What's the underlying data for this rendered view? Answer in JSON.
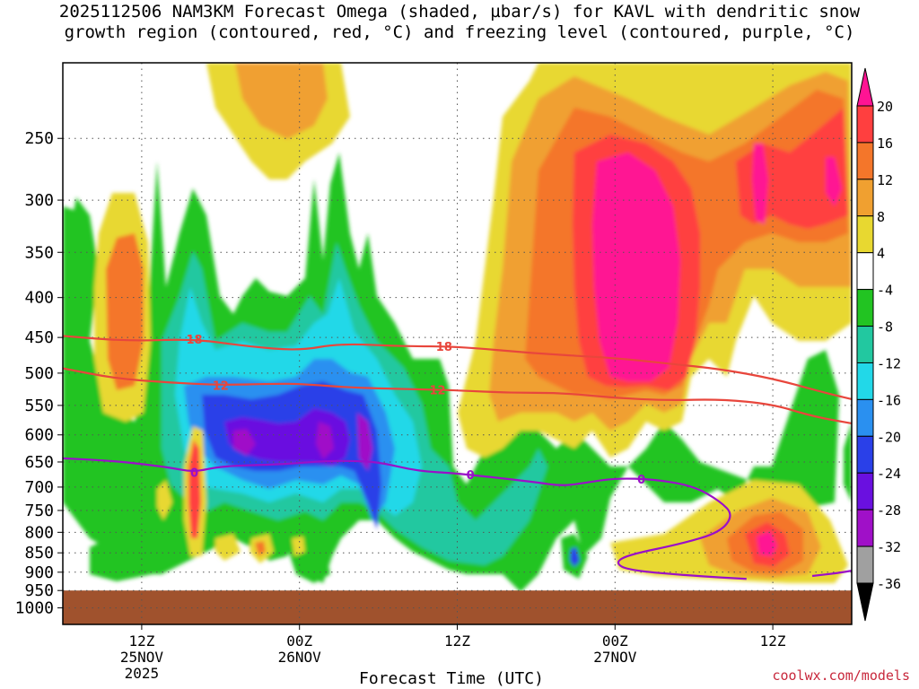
{
  "title_line1": "2025112506 NAM3KM Forecast Omega (shaded, µbar/s) for KAVL with dendritic snow",
  "title_line2": "growth region (contoured, red, °C) and freezing level (contoured, purple, °C)",
  "credit": "coolwx.com/models",
  "chart_data": {
    "type": "heatmap",
    "xlabel": "Forecast Time (UTC)",
    "ylabel": "",
    "x_range_hours": [
      0,
      60
    ],
    "y_range_hpa": [
      1050,
      200
    ],
    "y_ticks": [
      250,
      300,
      350,
      400,
      450,
      500,
      550,
      600,
      650,
      700,
      750,
      800,
      850,
      900,
      950,
      1000
    ],
    "x_ticks": [
      {
        "hour": 6,
        "lines": [
          "12Z",
          "25NOV",
          "2025"
        ]
      },
      {
        "hour": 18,
        "lines": [
          "00Z",
          "26NOV"
        ]
      },
      {
        "hour": 30,
        "lines": [
          "12Z"
        ]
      },
      {
        "hour": 42,
        "lines": [
          "00Z",
          "27NOV"
        ]
      },
      {
        "hour": 54,
        "lines": [
          "12Z"
        ]
      }
    ],
    "colorbar": {
      "labels": [
        "20",
        "16",
        "12",
        "8",
        "4",
        "-4",
        "-8",
        "-12",
        "-16",
        "-20",
        "-24",
        "-28",
        "-32",
        "-36"
      ],
      "colors": [
        "#ff1493",
        "#ff3f3f",
        "#f4762a",
        "#f0a030",
        "#e8d830",
        "#ffffff",
        "#22c422",
        "#22c8a0",
        "#22d8e8",
        "#2a90f0",
        "#2a40e8",
        "#6a10e0",
        "#a010c8",
        "#a0a0a0",
        "#000000"
      ]
    },
    "ground_level_hpa": 950,
    "contours": [
      {
        "name": "-18",
        "color": "#e8463c",
        "label": "18",
        "label_hours": [
          10,
          29
        ],
        "points": [
          [
            0,
            448
          ],
          [
            5,
            455
          ],
          [
            10,
            452
          ],
          [
            14,
            462
          ],
          [
            18,
            468
          ],
          [
            21,
            458
          ],
          [
            26,
            462
          ],
          [
            30,
            462
          ],
          [
            36,
            472
          ],
          [
            42,
            478
          ],
          [
            46,
            486
          ],
          [
            50,
            494
          ],
          [
            54,
            508
          ],
          [
            58,
            530
          ],
          [
            60,
            540
          ]
        ]
      },
      {
        "name": "-12",
        "color": "#e8463c",
        "label": "12",
        "label_hours": [
          12,
          28.5
        ],
        "points": [
          [
            0,
            493
          ],
          [
            4,
            508
          ],
          [
            8,
            514
          ],
          [
            12,
            518
          ],
          [
            16,
            516
          ],
          [
            18,
            516
          ],
          [
            22,
            522
          ],
          [
            26,
            524
          ],
          [
            30,
            526
          ],
          [
            34,
            530
          ],
          [
            38,
            530
          ],
          [
            42,
            538
          ],
          [
            46,
            542
          ],
          [
            50,
            540
          ],
          [
            54,
            548
          ],
          [
            57,
            568
          ],
          [
            60,
            580
          ]
        ]
      },
      {
        "name": "0",
        "color": "#9a10c8",
        "label": "0",
        "label_hours": [
          10,
          31,
          44
        ],
        "points": [
          [
            0,
            643
          ],
          [
            4,
            648
          ],
          [
            8,
            660
          ],
          [
            10,
            670
          ],
          [
            12,
            658
          ],
          [
            16,
            655
          ],
          [
            18,
            652
          ],
          [
            20,
            648
          ],
          [
            22,
            648
          ],
          [
            24,
            650
          ],
          [
            27,
            668
          ],
          [
            30,
            672
          ],
          [
            36,
            690
          ],
          [
            38,
            698
          ],
          [
            40,
            690
          ],
          [
            42,
            682
          ],
          [
            45,
            684
          ],
          [
            48,
            698
          ],
          [
            50,
            730
          ],
          [
            51,
            760
          ],
          [
            50,
            800
          ],
          [
            47,
            828
          ],
          [
            43,
            855
          ],
          [
            42,
            875
          ],
          [
            43,
            895
          ],
          [
            48,
            910
          ],
          [
            52,
            918
          ]
        ]
      },
      {
        "name": "0b",
        "color": "#9a10c8",
        "label": "",
        "label_hours": [],
        "points": [
          [
            57,
            910
          ],
          [
            59,
            902
          ],
          [
            60,
            896
          ]
        ]
      }
    ]
  }
}
